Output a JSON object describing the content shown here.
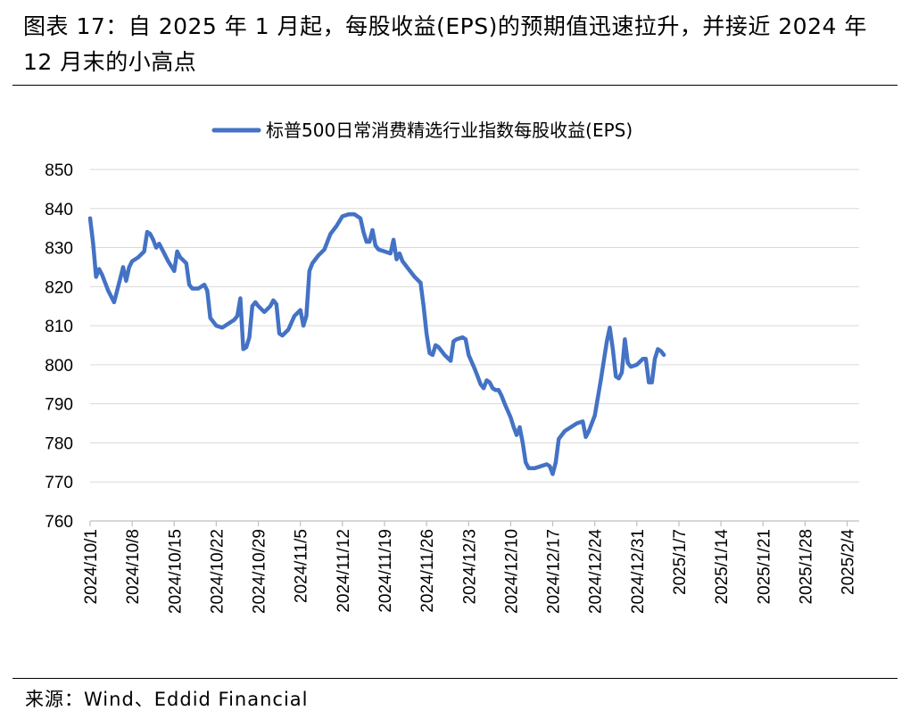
{
  "figure": {
    "title": "图表 17：自 2025 年 1 月起，每股收益(EPS)的预期值迅速拉升，并接近 2024 年 12 月末的小高点",
    "source": "来源：Wind、Eddid Financial"
  },
  "chart_data": {
    "type": "line",
    "title": "",
    "xlabel": "",
    "ylabel": "",
    "ylim": [
      760,
      850
    ],
    "yticks": [
      760,
      770,
      780,
      790,
      800,
      810,
      820,
      830,
      840,
      850
    ],
    "grid": true,
    "legend_position": "top-center",
    "x_tick_labels": [
      "2024/10/1",
      "2024/10/8",
      "2024/10/15",
      "2024/10/22",
      "2024/10/29",
      "2024/11/5",
      "2024/11/12",
      "2024/11/19",
      "2024/11/26",
      "2024/12/3",
      "2024/12/10",
      "2024/12/17",
      "2024/12/24",
      "2024/12/31",
      "2025/1/7",
      "2025/1/14",
      "2025/1/21",
      "2025/1/28",
      "2025/2/4"
    ],
    "x_start": "2024/10/1",
    "x_end": "2025/2/6",
    "series": [
      {
        "name": "标普500日常消费精选行业指数每股收益(EPS)",
        "color": "#4472c4",
        "points": [
          [
            0,
            837.5
          ],
          [
            0.5,
            831
          ],
          [
            1,
            822.5
          ],
          [
            1.5,
            824.5
          ],
          [
            2,
            823
          ],
          [
            3,
            819
          ],
          [
            4,
            816
          ],
          [
            5,
            822
          ],
          [
            5.5,
            825
          ],
          [
            6,
            821.5
          ],
          [
            6.5,
            825
          ],
          [
            7,
            826.5
          ],
          [
            8,
            827.5
          ],
          [
            9,
            829
          ],
          [
            9.5,
            834
          ],
          [
            10,
            833.5
          ],
          [
            10.5,
            832
          ],
          [
            11,
            830
          ],
          [
            11.5,
            831
          ],
          [
            12,
            829.5
          ],
          [
            13,
            826.5
          ],
          [
            14,
            824
          ],
          [
            14.5,
            829
          ],
          [
            15,
            827.5
          ],
          [
            16,
            826
          ],
          [
            16.5,
            820.5
          ],
          [
            17,
            819.5
          ],
          [
            18,
            819.5
          ],
          [
            19,
            820.5
          ],
          [
            19.5,
            819
          ],
          [
            20,
            812
          ],
          [
            21,
            810
          ],
          [
            22,
            809.5
          ],
          [
            23,
            810.5
          ],
          [
            24,
            811.5
          ],
          [
            24.5,
            812.5
          ],
          [
            25,
            817
          ],
          [
            25.5,
            804
          ],
          [
            26,
            804.5
          ],
          [
            26.5,
            807
          ],
          [
            27,
            815
          ],
          [
            27.5,
            816
          ],
          [
            28,
            815
          ],
          [
            29,
            813.5
          ],
          [
            30,
            815
          ],
          [
            30.5,
            816.5
          ],
          [
            31,
            815.5
          ],
          [
            31.5,
            808
          ],
          [
            32,
            807.5
          ],
          [
            33,
            809
          ],
          [
            34,
            812.5
          ],
          [
            35,
            814
          ],
          [
            35.5,
            810
          ],
          [
            36,
            812.5
          ],
          [
            36.5,
            824
          ],
          [
            37,
            826
          ],
          [
            38,
            828
          ],
          [
            39,
            829.5
          ],
          [
            40,
            833.5
          ],
          [
            41,
            835.5
          ],
          [
            42,
            838
          ],
          [
            43,
            838.5
          ],
          [
            44,
            838.5
          ],
          [
            45,
            837.5
          ],
          [
            45.5,
            834
          ],
          [
            46,
            831.5
          ],
          [
            46.5,
            831.5
          ],
          [
            47,
            834.5
          ],
          [
            47.5,
            830.5
          ],
          [
            48,
            829.5
          ],
          [
            49,
            829
          ],
          [
            50,
            828.5
          ],
          [
            50.5,
            832
          ],
          [
            51,
            827
          ],
          [
            51.5,
            828.5
          ],
          [
            52,
            826.5
          ],
          [
            53,
            824.5
          ],
          [
            54,
            822.5
          ],
          [
            55,
            821
          ],
          [
            55.5,
            815
          ],
          [
            56,
            808
          ],
          [
            56.5,
            803
          ],
          [
            57,
            802.5
          ],
          [
            57.5,
            805
          ],
          [
            58,
            804.5
          ],
          [
            59,
            802.5
          ],
          [
            60,
            801
          ],
          [
            60.5,
            806
          ],
          [
            61,
            806.5
          ],
          [
            62,
            807
          ],
          [
            62.5,
            806.5
          ],
          [
            63,
            802.5
          ],
          [
            64,
            799
          ],
          [
            64.5,
            797
          ],
          [
            65,
            795
          ],
          [
            65.5,
            794
          ],
          [
            66,
            796
          ],
          [
            66.5,
            795.5
          ],
          [
            67,
            794
          ],
          [
            67.5,
            793.5
          ],
          [
            68,
            793.5
          ],
          [
            68.5,
            792
          ],
          [
            69,
            790
          ],
          [
            70,
            786.5
          ],
          [
            70.5,
            784
          ],
          [
            71,
            782
          ],
          [
            71.5,
            784
          ],
          [
            72,
            780
          ],
          [
            72.5,
            775
          ],
          [
            73,
            773.5
          ],
          [
            74,
            773.5
          ],
          [
            75,
            774
          ],
          [
            76,
            774.5
          ],
          [
            76.5,
            774
          ],
          [
            77,
            772
          ],
          [
            77.5,
            775
          ],
          [
            78,
            781
          ],
          [
            79,
            783
          ],
          [
            80,
            784
          ],
          [
            81,
            785
          ],
          [
            82,
            785.5
          ],
          [
            82.5,
            781.5
          ],
          [
            83,
            783
          ],
          [
            84,
            787
          ],
          [
            85,
            796
          ],
          [
            86,
            806
          ],
          [
            86.5,
            809.5
          ],
          [
            87,
            804
          ],
          [
            87.5,
            797
          ],
          [
            88,
            796.5
          ],
          [
            88.5,
            798
          ],
          [
            89,
            806.5
          ],
          [
            89.5,
            800.5
          ],
          [
            90,
            799.5
          ],
          [
            91,
            800
          ],
          [
            92,
            801.5
          ],
          [
            92.5,
            801.5
          ],
          [
            93,
            795.5
          ],
          [
            93.5,
            795.5
          ],
          [
            94,
            801.5
          ],
          [
            94.5,
            804
          ],
          [
            95,
            803.5
          ],
          [
            95.5,
            802.5
          ]
        ]
      }
    ]
  }
}
